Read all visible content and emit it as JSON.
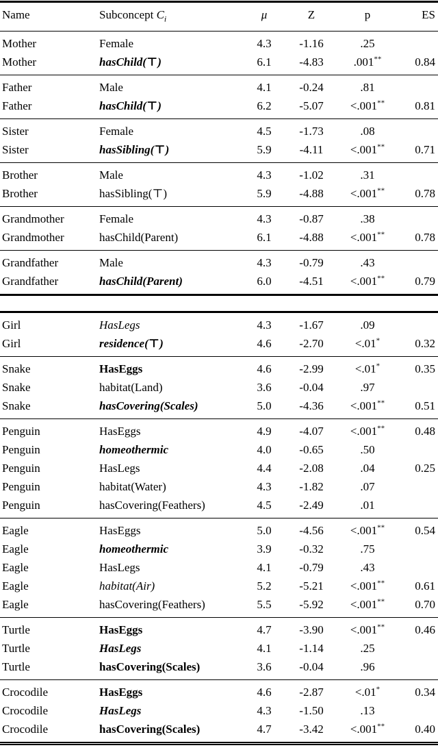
{
  "page": {
    "background_color": "#ffffff",
    "text_color": "#000000",
    "rule_color": "#000000"
  },
  "header": {
    "name": "Name",
    "subconcept_label": "Subconcept ",
    "subconcept_var": "C",
    "subconcept_sub": "i",
    "mu": "μ",
    "z": "Z",
    "p": "p",
    "es": "ES"
  },
  "table1": {
    "groups": [
      [
        {
          "name": "Mother",
          "concept": "Female",
          "emph": "normal",
          "mu": "4.3",
          "z": "-1.16",
          "p": ".25",
          "stars": "",
          "es": ""
        },
        {
          "name": "Mother",
          "concept": "hasChild(⊤)",
          "emph": "bolditalic",
          "mu": "6.1",
          "z": "-4.83",
          "p": ".001",
          "stars": "**",
          "es": "0.84"
        }
      ],
      [
        {
          "name": "Father",
          "concept": "Male",
          "emph": "normal",
          "mu": "4.1",
          "z": "-0.24",
          "p": ".81",
          "stars": "",
          "es": ""
        },
        {
          "name": "Father",
          "concept": "hasChild(⊤)",
          "emph": "bolditalic",
          "mu": "6.2",
          "z": "-5.07",
          "p": "<.001",
          "stars": "**",
          "es": "0.81"
        }
      ],
      [
        {
          "name": "Sister",
          "concept": "Female",
          "emph": "normal",
          "mu": "4.5",
          "z": "-1.73",
          "p": ".08",
          "stars": "",
          "es": ""
        },
        {
          "name": "Sister",
          "concept": "hasSibling(⊤)",
          "emph": "bolditalic",
          "mu": "5.9",
          "z": "-4.11",
          "p": "<.001",
          "stars": "**",
          "es": "0.71"
        }
      ],
      [
        {
          "name": "Brother",
          "concept": "Male",
          "emph": "normal",
          "mu": "4.3",
          "z": "-1.02",
          "p": ".31",
          "stars": "",
          "es": ""
        },
        {
          "name": "Brother",
          "concept": "hasSibling(⊤)",
          "emph": "normal",
          "mu": "5.9",
          "z": "-4.88",
          "p": "<.001",
          "stars": "**",
          "es": "0.78"
        }
      ],
      [
        {
          "name": "Grandmother",
          "concept": "Female",
          "emph": "normal",
          "mu": "4.3",
          "z": "-0.87",
          "p": ".38",
          "stars": "",
          "es": ""
        },
        {
          "name": "Grandmother",
          "concept": "hasChild(Parent)",
          "emph": "normal",
          "mu": "6.1",
          "z": "-4.88",
          "p": "<.001",
          "stars": "**",
          "es": "0.78"
        }
      ],
      [
        {
          "name": "Grandfather",
          "concept": "Male",
          "emph": "normal",
          "mu": "4.3",
          "z": "-0.79",
          "p": ".43",
          "stars": "",
          "es": ""
        },
        {
          "name": "Grandfather",
          "concept": "hasChild(Parent)",
          "emph": "bolditalic",
          "mu": "6.0",
          "z": "-4.51",
          "p": "<.001",
          "stars": "**",
          "es": "0.79"
        }
      ]
    ]
  },
  "table2": {
    "groups": [
      [
        {
          "name": "Girl",
          "concept": "HasLegs",
          "emph": "italic",
          "mu": "4.3",
          "z": "-1.67",
          "p": ".09",
          "stars": "",
          "es": ""
        },
        {
          "name": "Girl",
          "concept": "residence(⊤)",
          "emph": "bolditalic",
          "mu": "4.6",
          "z": "-2.70",
          "p": "<.01",
          "stars": "*",
          "es": "0.32"
        }
      ],
      [
        {
          "name": "Snake",
          "concept": "HasEggs",
          "emph": "bold",
          "mu": "4.6",
          "z": "-2.99",
          "p": "<.01",
          "stars": "*",
          "es": "0.35"
        },
        {
          "name": "Snake",
          "concept": "habitat(Land)",
          "emph": "normal",
          "mu": "3.6",
          "z": "-0.04",
          "p": ".97",
          "stars": "",
          "es": ""
        },
        {
          "name": "Snake",
          "concept": "hasCovering(Scales)",
          "emph": "bolditalic",
          "mu": "5.0",
          "z": "-4.36",
          "p": "<.001",
          "stars": "**",
          "es": "0.51"
        }
      ],
      [
        {
          "name": "Penguin",
          "concept": "HasEggs",
          "emph": "normal",
          "mu": "4.9",
          "z": "-4.07",
          "p": "<.001",
          "stars": "**",
          "es": "0.48"
        },
        {
          "name": "Penguin",
          "concept": "homeothermic",
          "emph": "bolditalic",
          "mu": "4.0",
          "z": "-0.65",
          "p": ".50",
          "stars": "",
          "es": ""
        },
        {
          "name": "Penguin",
          "concept": "HasLegs",
          "emph": "normal",
          "mu": "4.4",
          "z": "-2.08",
          "p": ".04",
          "stars": "",
          "es": "0.25"
        },
        {
          "name": "Penguin",
          "concept": "habitat(Water)",
          "emph": "normal",
          "mu": "4.3",
          "z": "-1.82",
          "p": ".07",
          "stars": "",
          "es": ""
        },
        {
          "name": "Penguin",
          "concept": "hasCovering(Feathers)",
          "emph": "normal",
          "mu": "4.5",
          "z": "-2.49",
          "p": ".01",
          "stars": "",
          "es": ""
        }
      ],
      [
        {
          "name": "Eagle",
          "concept": "HasEggs",
          "emph": "normal",
          "mu": "5.0",
          "z": "-4.56",
          "p": "<.001",
          "stars": "**",
          "es": "0.54"
        },
        {
          "name": "Eagle",
          "concept": "homeothermic",
          "emph": "bolditalic",
          "mu": "3.9",
          "z": "-0.32",
          "p": ".75",
          "stars": "",
          "es": ""
        },
        {
          "name": "Eagle",
          "concept": "HasLegs",
          "emph": "normal",
          "mu": "4.1",
          "z": "-0.79",
          "p": ".43",
          "stars": "",
          "es": ""
        },
        {
          "name": "Eagle",
          "concept": "habitat(Air)",
          "emph": "italic",
          "mu": "5.2",
          "z": "-5.21",
          "p": "<.001",
          "stars": "**",
          "es": "0.61"
        },
        {
          "name": "Eagle",
          "concept": "hasCovering(Feathers)",
          "emph": "normal",
          "mu": "5.5",
          "z": "-5.92",
          "p": "<.001",
          "stars": "**",
          "es": "0.70"
        }
      ],
      [
        {
          "name": "Turtle",
          "concept": "HasEggs",
          "emph": "bold",
          "mu": "4.7",
          "z": "-3.90",
          "p": "<.001",
          "stars": "**",
          "es": "0.46"
        },
        {
          "name": "Turtle",
          "concept": "HasLegs",
          "emph": "bolditalic",
          "mu": "4.1",
          "z": "-1.14",
          "p": ".25",
          "stars": "",
          "es": ""
        },
        {
          "name": "Turtle",
          "concept": "hasCovering(Scales)",
          "emph": "bold",
          "mu": "3.6",
          "z": "-0.04",
          "p": ".96",
          "stars": "",
          "es": ""
        }
      ],
      [
        {
          "name": "Crocodile",
          "concept": "HasEggs",
          "emph": "bold",
          "mu": "4.6",
          "z": "-2.87",
          "p": "<.01",
          "stars": "*",
          "es": "0.34"
        },
        {
          "name": "Crocodile",
          "concept": "HasLegs",
          "emph": "bolditalic",
          "mu": "4.3",
          "z": "-1.50",
          "p": ".13",
          "stars": "",
          "es": ""
        },
        {
          "name": "Crocodile",
          "concept": "hasCovering(Scales)",
          "emph": "bold",
          "mu": "4.7",
          "z": "-3.42",
          "p": "<.001",
          "stars": "**",
          "es": "0.40"
        }
      ]
    ]
  }
}
